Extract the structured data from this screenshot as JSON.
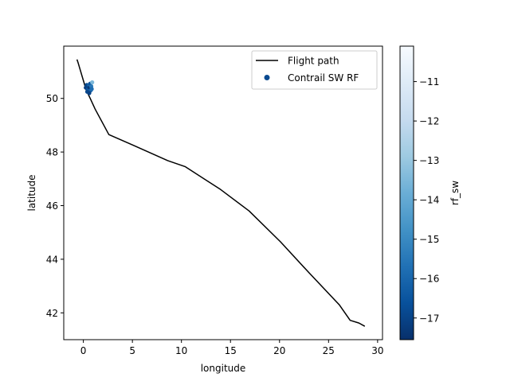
{
  "chart_data": {
    "type": "line",
    "xlabel": "longitude",
    "ylabel": "latitude",
    "xlim": [
      -2.0,
      30.5
    ],
    "ylim": [
      41.0,
      51.95
    ],
    "x_ticks": [
      0,
      5,
      10,
      15,
      20,
      25,
      30
    ],
    "x_tick_labels": [
      "0",
      "5",
      "10",
      "15",
      "20",
      "25",
      "30"
    ],
    "y_ticks": [
      42,
      44,
      46,
      48,
      50
    ],
    "y_tick_labels": [
      "42",
      "44",
      "46",
      "48",
      "50"
    ],
    "legend_position": "top-right",
    "series": [
      {
        "name": "Flight path",
        "kind": "line",
        "color": "#000000",
        "x": [
          -0.65,
          -0.55,
          0.3,
          0.7,
          1.2,
          2.6,
          5.1,
          8.6,
          10.4,
          14.0,
          16.9,
          20.1,
          23.0,
          26.1,
          27.2,
          28.1,
          28.7
        ],
        "y": [
          51.45,
          51.35,
          50.3,
          50.0,
          49.6,
          48.65,
          48.25,
          47.68,
          47.45,
          46.6,
          45.8,
          44.65,
          43.5,
          42.3,
          41.72,
          41.62,
          41.5
        ]
      },
      {
        "name": "Contrail SW RF",
        "kind": "scatter",
        "x": [
          0.25,
          0.35,
          0.45,
          0.5,
          0.55,
          0.6,
          0.65,
          0.7,
          0.75,
          0.8,
          0.9,
          0.4,
          0.6,
          0.85
        ],
        "y": [
          50.4,
          50.5,
          50.35,
          50.45,
          50.3,
          50.5,
          50.4,
          50.55,
          50.3,
          50.45,
          50.6,
          50.25,
          50.2,
          50.35
        ],
        "values": [
          -17.2,
          -16.8,
          -16.5,
          -17.0,
          -16.2,
          -15.9,
          -17.4,
          -16.6,
          -16.0,
          -15.5,
          -13.5,
          -16.9,
          -17.1,
          -15.8
        ]
      }
    ],
    "colorbar": {
      "label": "rf_sw",
      "colormap": "Blues_r",
      "min": -17.55,
      "max": -10.1,
      "ticks": [
        -17,
        -16,
        -15,
        -14,
        -13,
        -12,
        -11
      ],
      "tick_labels": [
        "−17",
        "−16",
        "−15",
        "−14",
        "−13",
        "−12",
        "−11"
      ],
      "color_stops": [
        "#08306b",
        "#08519c",
        "#2171b5",
        "#4292c6",
        "#6baed6",
        "#9ecae1",
        "#c6dbef",
        "#deebf7",
        "#f7fbff"
      ]
    }
  }
}
